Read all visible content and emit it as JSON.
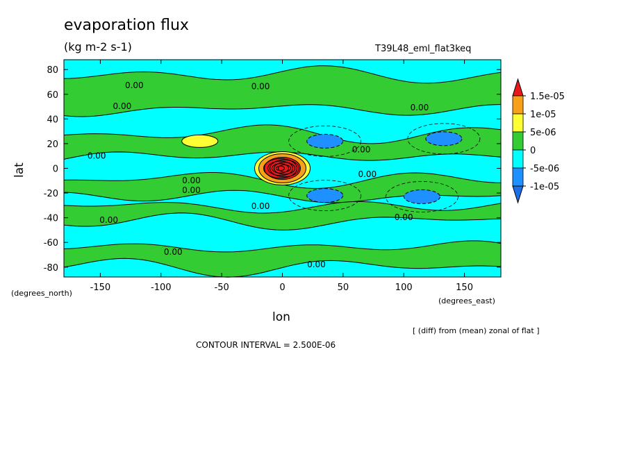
{
  "chart_data": {
    "type": "heatmap",
    "title": "evaporation flux",
    "units": "(kg m-2 s-1)",
    "run_id": "T39L48_eml_flat3keq",
    "xlabel": "lon",
    "ylabel": "lat",
    "x_units": "(degrees_east)",
    "y_units": "(degrees_north)",
    "xlim": [
      -180,
      180
    ],
    "ylim": [
      -88,
      88
    ],
    "x_ticks": [
      -150,
      -100,
      -50,
      0,
      50,
      100,
      150
    ],
    "y_ticks": [
      -80,
      -60,
      -40,
      -20,
      0,
      20,
      40,
      60,
      80
    ],
    "x_tick_labels": [
      "-150",
      "-100",
      "-50",
      "0",
      "50",
      "100",
      "150"
    ],
    "y_tick_labels": [
      "-80",
      "-60",
      "-40",
      "-20",
      "0",
      "20",
      "40",
      "60",
      "80"
    ],
    "note": "[ (diff) from (mean) zonal of flat ]",
    "contour_interval": "CONTOUR INTERVAL = 2.500E-06",
    "colorbar": {
      "labels": [
        "1.5e-05",
        "1e-05",
        "5e-06",
        "0",
        "-5e-06",
        "-1e-05"
      ],
      "levels": [
        1.5e-05,
        1e-05,
        5e-06,
        0,
        -5e-06,
        -1e-05
      ],
      "colors": [
        "#e8191a",
        "#f7a11a",
        "#ffff33",
        "#33cc33",
        "#00ffff",
        "#1e90ff",
        "#1e6fe6"
      ]
    },
    "contour_labels": [
      {
        "text": "0.00",
        "lon": -122,
        "lat": 65
      },
      {
        "text": "0.00",
        "lon": -18,
        "lat": 64
      },
      {
        "text": "0.00",
        "lon": -132,
        "lat": 48
      },
      {
        "text": "0.00",
        "lon": 113,
        "lat": 47
      },
      {
        "text": "0.00",
        "lon": -153,
        "lat": 8
      },
      {
        "text": "0.00",
        "lon": 65,
        "lat": 13
      },
      {
        "text": "0.00",
        "lon": 70,
        "lat": -7
      },
      {
        "text": "0.00",
        "lon": -75,
        "lat": -12
      },
      {
        "text": "0.00",
        "lon": -75,
        "lat": -20
      },
      {
        "text": "0.00",
        "lon": -18,
        "lat": -33
      },
      {
        "text": "0.00",
        "lon": -143,
        "lat": -44
      },
      {
        "text": "0.00",
        "lon": 100,
        "lat": -42
      },
      {
        "text": "0.00",
        "lon": -90,
        "lat": -70
      },
      {
        "text": "0.00",
        "lon": 28,
        "lat": -80
      }
    ],
    "regions": {
      "green_bands": [
        {
          "lat_center": 62,
          "half_width": 14
        },
        {
          "lat_center": 19,
          "half_width": 9
        },
        {
          "lat_center": -16,
          "half_width": 7
        },
        {
          "lat_center": -37,
          "half_width": 6
        },
        {
          "lat_center": -72,
          "half_width": 8
        }
      ],
      "positive_core": {
        "lon": 0,
        "lat": 0,
        "max_level": 1.5e-05
      },
      "yellow_patch": {
        "lon": -68,
        "lat": 22
      },
      "blue_patches": [
        {
          "lon": 35,
          "lat": 22
        },
        {
          "lon": 35,
          "lat": -22
        },
        {
          "lon": 115,
          "lat": -23
        },
        {
          "lon": 133,
          "lat": 24
        }
      ]
    }
  }
}
